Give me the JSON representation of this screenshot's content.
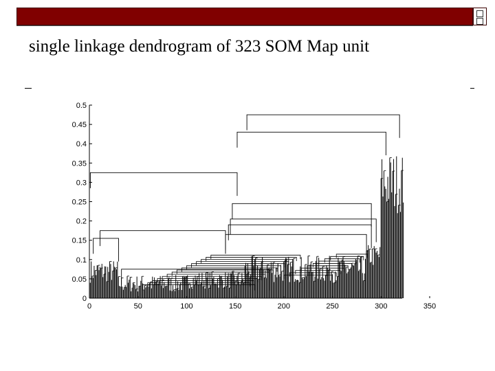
{
  "slide": {
    "title": "single linkage dendrogram of 323 SOM Map  unit"
  },
  "colors": {
    "title_bar": "#800000",
    "bars": "#000000",
    "background": "#ffffff"
  },
  "chart_data": {
    "type": "bar",
    "title": "single linkage dendrogram of 323 SOM Map  unit",
    "xlabel": "",
    "ylabel": "",
    "xlim": [
      0,
      350
    ],
    "ylim": [
      0,
      0.5
    ],
    "grid": false,
    "x_ticks": [
      "0",
      "50",
      "100",
      "150",
      "200",
      "250",
      "300",
      "350"
    ],
    "y_ticks": [
      "0",
      "0.05",
      "0.1",
      "0.15",
      "0.2",
      "0.25",
      "0.3",
      "0.35",
      "0.4",
      "0.45",
      "0.5"
    ],
    "leaves": 323,
    "merges": [
      {
        "x_left": 162,
        "x_right": 319,
        "height": 0.475
      },
      {
        "x_left": 152,
        "x_right": 305,
        "height": 0.43
      },
      {
        "x_left": 1,
        "x_right": 152,
        "height": 0.325
      },
      {
        "x_left": 147,
        "x_right": 290,
        "height": 0.245
      },
      {
        "x_left": 145,
        "x_right": 295,
        "height": 0.205
      },
      {
        "x_left": 143,
        "x_right": 290,
        "height": 0.19
      },
      {
        "x_left": 140,
        "x_right": 285,
        "height": 0.165
      },
      {
        "x_left": 11,
        "x_right": 140,
        "height": 0.175
      },
      {
        "x_left": 4,
        "x_right": 30,
        "height": 0.155
      },
      {
        "x_left": 33,
        "x_right": 185,
        "height": 0.075
      },
      {
        "x_left": 55,
        "x_right": 170,
        "height": 0.035
      }
    ]
  }
}
